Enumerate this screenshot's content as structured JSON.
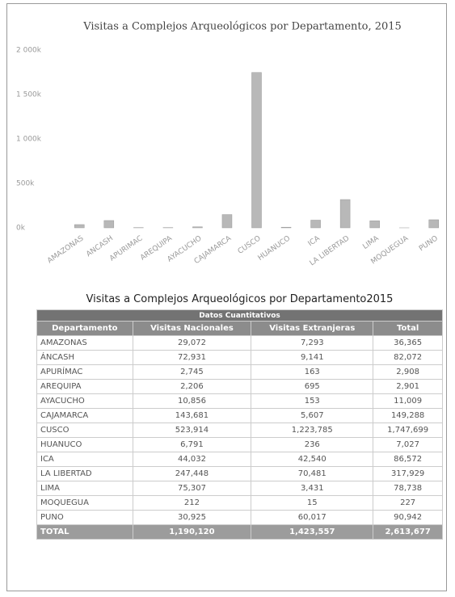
{
  "chart_data": {
    "type": "bar",
    "title": "Visitas a Complejos Arqueológicos por Departamento, 2015",
    "categories": [
      "AMAZONAS",
      "ANCASH",
      "APURIMAC",
      "AREQUIPA",
      "AYACUCHO",
      "CAJAMARCA",
      "CUSCO",
      "HUANUCO",
      "ICA",
      "LA LIBERTAD",
      "LIMA",
      "MOQUEGUA",
      "PUNO"
    ],
    "values": [
      36365,
      82072,
      2908,
      2901,
      11009,
      149288,
      1747699,
      7027,
      86572,
      317929,
      78738,
      227,
      90942
    ],
    "color": "#b8b8b8",
    "ylim": [
      0,
      2000000
    ],
    "yticks": [
      {
        "value": 0,
        "label": "0k"
      },
      {
        "value": 500000,
        "label": "500k"
      },
      {
        "value": 1000000,
        "label": "1 000k"
      },
      {
        "value": 1500000,
        "label": "1 500k"
      },
      {
        "value": 2000000,
        "label": "2 000k"
      }
    ],
    "grid": false
  },
  "table": {
    "title": "Visitas a Complejos Arqueológicos por Departamento2015",
    "group_header": "Datos Cuantitativos",
    "columns": [
      "Departamento",
      "Visitas Nacionales",
      "Visitas Extranjeras",
      "Total"
    ],
    "rows": [
      [
        "AMAZONAS",
        "29,072",
        "7,293",
        "36,365"
      ],
      [
        "ÁNCASH",
        "72,931",
        "9,141",
        "82,072"
      ],
      [
        "APURÍMAC",
        "2,745",
        "163",
        "2,908"
      ],
      [
        "AREQUIPA",
        "2,206",
        "695",
        "2,901"
      ],
      [
        "AYACUCHO",
        "10,856",
        "153",
        "11,009"
      ],
      [
        "CAJAMARCA",
        "143,681",
        "5,607",
        "149,288"
      ],
      [
        "CUSCO",
        "523,914",
        "1,223,785",
        "1,747,699"
      ],
      [
        "HUANUCO",
        "6,791",
        "236",
        "7,027"
      ],
      [
        "ICA",
        "44,032",
        "42,540",
        "86,572"
      ],
      [
        "LA LIBERTAD",
        "247,448",
        "70,481",
        "317,929"
      ],
      [
        "LIMA",
        "75,307",
        "3,431",
        "78,738"
      ],
      [
        "MOQUEGUA",
        "212",
        "15",
        "227"
      ],
      [
        "PUNO",
        "30,925",
        "60,017",
        "90,942"
      ]
    ],
    "total": [
      "TOTAL",
      "1,190,120",
      "1,423,557",
      "2,613,677"
    ]
  }
}
